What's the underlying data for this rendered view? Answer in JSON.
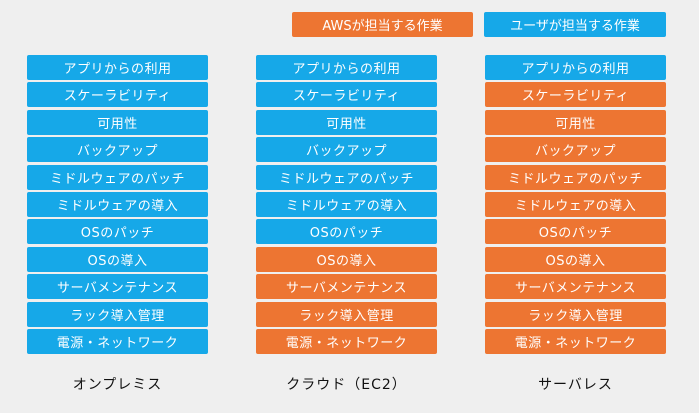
{
  "colors": {
    "aws": "#ed7532",
    "user": "#16a8e8",
    "background": "#efefef"
  },
  "legend": {
    "aws_label": "AWSが担当する作業",
    "user_label": "ユーザが担当する作業"
  },
  "rows": [
    "アプリからの利用",
    "スケーラビリティ",
    "可用性",
    "バックアップ",
    "ミドルウェアのパッチ",
    "ミドルウェアの導入",
    "OSのパッチ",
    "OSの導入",
    "サーバメンテナンス",
    "ラック導入管理",
    "電源・ネットワーク"
  ],
  "columns": [
    {
      "label": "オンプレミス",
      "owners": [
        "user",
        "user",
        "user",
        "user",
        "user",
        "user",
        "user",
        "user",
        "user",
        "user",
        "user"
      ]
    },
    {
      "label": "クラウド（EC2）",
      "owners": [
        "user",
        "user",
        "user",
        "user",
        "user",
        "user",
        "user",
        "aws",
        "aws",
        "aws",
        "aws"
      ]
    },
    {
      "label": "サーバレス",
      "owners": [
        "user",
        "aws",
        "aws",
        "aws",
        "aws",
        "aws",
        "aws",
        "aws",
        "aws",
        "aws",
        "aws"
      ]
    }
  ]
}
